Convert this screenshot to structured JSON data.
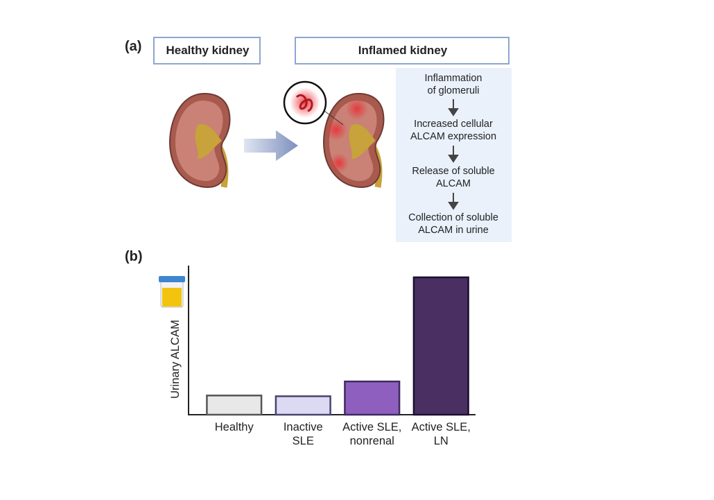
{
  "panel_a": {
    "label": "(a)",
    "healthy_title": "Healthy kidney",
    "inflamed_title": "Inflamed kidney",
    "steps": [
      "Inflammation\nof glomeruli",
      "Increased cellular\nALCAM expression",
      "Release of soluble\nALCAM",
      "Collection of soluble\nALCAM in urine"
    ]
  },
  "panel_b": {
    "label": "(b)"
  },
  "chart_data": {
    "type": "bar",
    "y_label": "Urinary ALCAM",
    "categories": [
      "Healthy",
      "Inactive\nSLE",
      "Active SLE,\nnonrenal",
      "Active SLE,\nLN"
    ],
    "values": [
      13,
      12.5,
      22.5,
      93
    ],
    "colors": [
      "#e8e8e8",
      "#dcdaf3",
      "#8f5fbf",
      "#4a2f63"
    ],
    "edgecolors": [
      "#555555",
      "#4a4270",
      "#3e2a5e",
      "#1b1030"
    ],
    "ylim": [
      0,
      100
    ]
  }
}
